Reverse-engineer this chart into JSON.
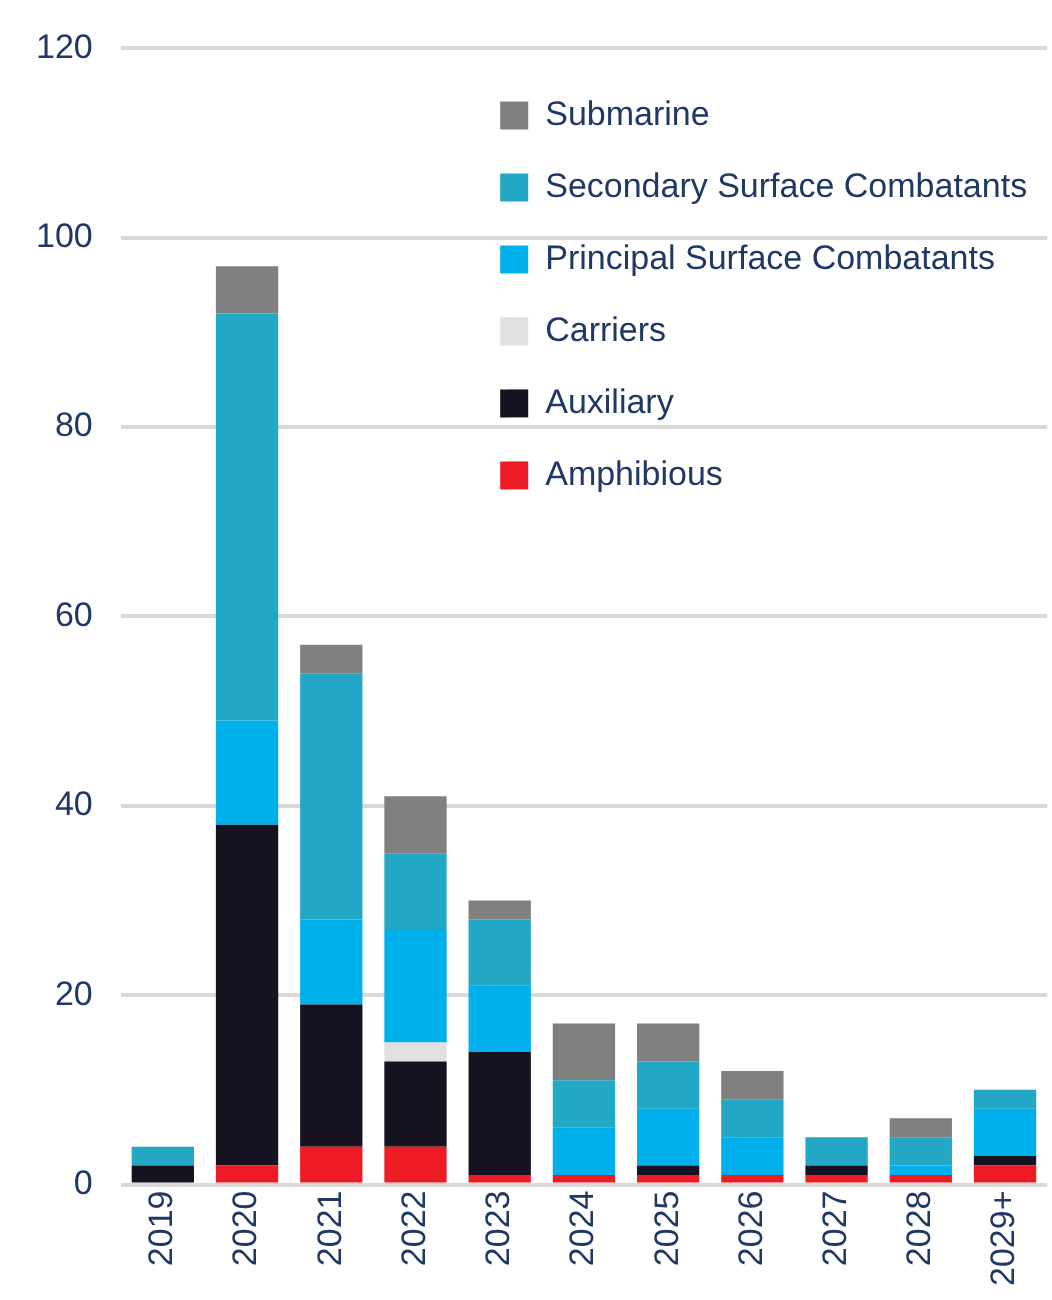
{
  "chart_data": {
    "type": "bar",
    "stacked": true,
    "categories": [
      "2019",
      "2020",
      "2021",
      "2022",
      "2023",
      "2024",
      "2025",
      "2026",
      "2027",
      "2028",
      "2029+"
    ],
    "series": [
      {
        "name": "Amphibious",
        "color": "#ed1c24",
        "values": [
          0,
          2,
          4,
          4,
          1,
          1,
          1,
          1,
          1,
          1,
          2
        ]
      },
      {
        "name": "Auxiliary",
        "color": "#17121f",
        "values": [
          2,
          36,
          15,
          9,
          13,
          0,
          1,
          0,
          1,
          0,
          1
        ]
      },
      {
        "name": "Carriers",
        "color": "#e0e0e2",
        "values": [
          0,
          0,
          0,
          2,
          0,
          0,
          0,
          0,
          0,
          0,
          0
        ]
      },
      {
        "name": "Principal Surface Combatants",
        "color": "#00b0ec",
        "values": [
          0,
          11,
          9,
          12,
          7,
          5,
          6,
          4,
          0,
          1,
          5
        ]
      },
      {
        "name": "Secondary Surface Combatants",
        "color": "#22a7c4",
        "values": [
          2,
          43,
          26,
          8,
          7,
          5,
          5,
          4,
          3,
          3,
          2
        ]
      },
      {
        "name": "Submarine",
        "color": "#808080",
        "values": [
          0,
          5,
          3,
          6,
          2,
          6,
          4,
          3,
          0,
          2,
          0
        ]
      }
    ],
    "ylim": [
      0,
      120
    ],
    "yticks": [
      0,
      20,
      40,
      60,
      80,
      100,
      120
    ],
    "grid": "y",
    "legend": "top right"
  }
}
